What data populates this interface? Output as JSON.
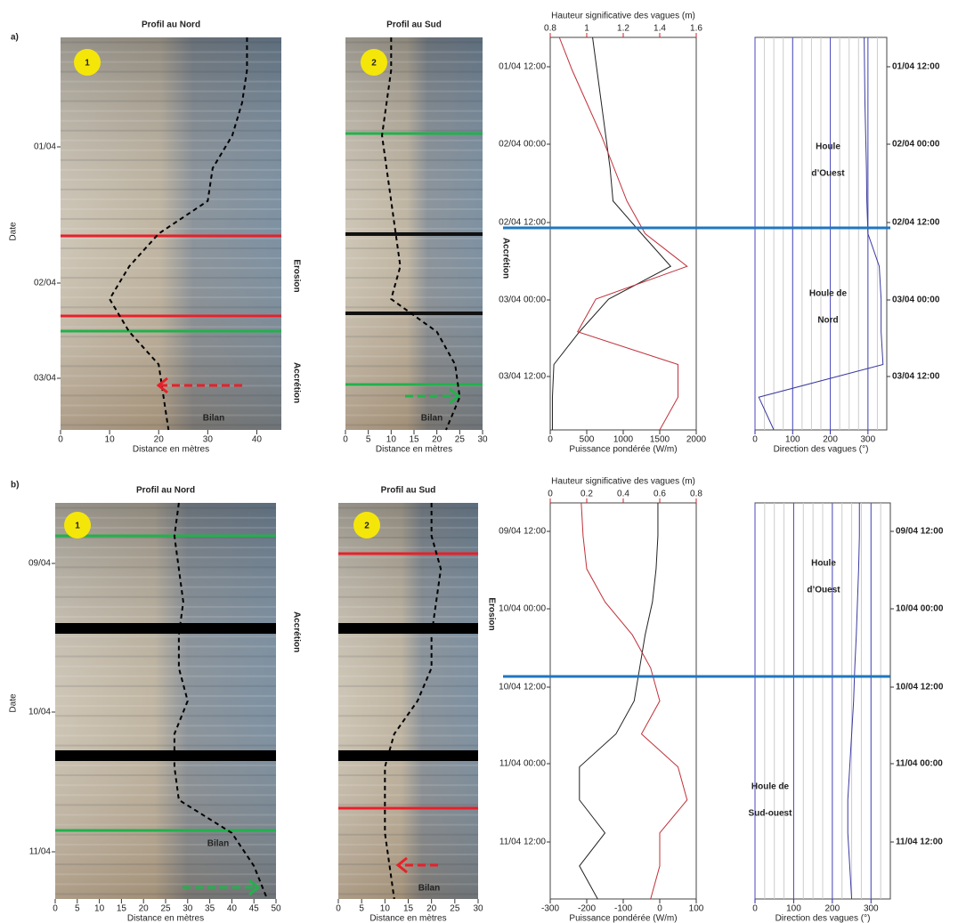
{
  "panel_labels": [
    "a)",
    "b)"
  ],
  "chart_data": [
    {
      "type": "timestack",
      "title": "Profil au Nord",
      "marker": "1",
      "ylabel": "Date",
      "xlabel": "Distance en mètres",
      "xlim": [
        0,
        45
      ],
      "xticks": [
        0,
        10,
        20,
        30,
        40
      ],
      "time_labels": [
        "01/04",
        "02/04",
        "03/04"
      ],
      "shoreline": [
        38,
        38,
        37,
        35,
        31,
        30,
        20,
        14,
        10,
        14,
        20,
        21,
        22
      ],
      "annotations": [
        {
          "text": "Erosion",
          "color": "#e8202a"
        },
        {
          "text": "Accrétion",
          "color": "#22b14c"
        },
        {
          "text": "Bilan",
          "color": "#e8202a"
        }
      ]
    },
    {
      "type": "timestack",
      "title": "Profil au Sud",
      "marker": "2",
      "xlabel": "Distance en mètres",
      "xlim": [
        0,
        30
      ],
      "xticks": [
        0,
        5,
        10,
        15,
        20,
        25,
        30
      ],
      "shoreline": [
        10,
        10,
        9,
        8,
        9,
        10,
        11,
        12,
        10,
        20,
        24,
        25,
        22
      ],
      "annotations": [
        {
          "text": "Accrétion",
          "color": "#22b14c"
        },
        {
          "text": "Bilan",
          "color": "#22b14c"
        }
      ]
    },
    {
      "type": "line",
      "x2label": "Hauteur significative des vagues (m)",
      "x2lim": [
        0.8,
        1.6
      ],
      "x2ticks": [
        0.8,
        1,
        1.2,
        1.4,
        1.6
      ],
      "x2color": "#d0202a",
      "xlabel": "Puissance pondérée (W/m)",
      "xlim": [
        0,
        2000
      ],
      "xticks": [
        0,
        500,
        1000,
        1500,
        2000
      ],
      "time_labels": [
        "01/04 12:00",
        "02/04 00:00",
        "02/04 12:00",
        "03/04 00:00",
        "03/04 12:00"
      ],
      "series": [
        {
          "color": "#222222",
          "values": [
            580,
            640,
            700,
            760,
            820,
            860,
            1250,
            1650,
            800,
            400,
            50,
            30,
            30
          ]
        },
        {
          "color": "#c0303a",
          "axis": "x2",
          "values": [
            0.85,
            0.92,
            1.0,
            1.08,
            1.15,
            1.22,
            1.32,
            1.55,
            1.05,
            0.95,
            1.5,
            1.5,
            1.4
          ]
        }
      ]
    },
    {
      "type": "line",
      "xlabel": "Direction des vagues (°)",
      "xlabel_color": "#2a2aa8",
      "xlim": [
        0,
        350
      ],
      "xticks": [
        0,
        100,
        200,
        300
      ],
      "grid": true,
      "time_labels": [
        "01/04 12:00",
        "02/04 00:00",
        "02/04 12:00",
        "03/04 00:00",
        "03/04 12:00"
      ],
      "series": [
        {
          "color": "#3a3aa0",
          "values": [
            290,
            291,
            292,
            294,
            296,
            297,
            300,
            330,
            335,
            335,
            340,
            10,
            50
          ]
        }
      ],
      "annotations": [
        {
          "lines": [
            "Houle",
            "d’Ouest"
          ],
          "color": "#1f77c0"
        },
        {
          "lines": [
            "Houle  de",
            "Nord"
          ],
          "color": "#1f77c0"
        }
      ]
    },
    {
      "type": "timestack",
      "title": "Profil au Nord",
      "marker": "1",
      "ylabel": "Date",
      "xlabel": "Distance en mètres",
      "xlim": [
        0,
        50
      ],
      "xticks": [
        0,
        5,
        10,
        15,
        20,
        25,
        30,
        35,
        40,
        45,
        50
      ],
      "time_labels": [
        "09/04",
        "10/04",
        "11/04"
      ],
      "shoreline": [
        28,
        27,
        28,
        29,
        28,
        28,
        30,
        27,
        27,
        28,
        40,
        45,
        48
      ],
      "annotations": [
        {
          "text": "Accrétion",
          "color": "#22b14c"
        },
        {
          "text": "Bilan",
          "color": "#22b14c"
        }
      ]
    },
    {
      "type": "timestack",
      "title": "Profil au Sud",
      "marker": "2",
      "xlabel": "Distance en mètres",
      "xlim": [
        0,
        30
      ],
      "xticks": [
        0,
        5,
        10,
        15,
        20,
        25,
        30
      ],
      "shoreline": [
        20,
        20,
        22,
        21,
        20,
        20,
        17,
        12,
        10,
        10,
        10,
        11,
        12
      ],
      "annotations": [
        {
          "text": "Erosion",
          "color": "#e8202a"
        },
        {
          "text": "Bilan",
          "color": "#e8202a"
        }
      ]
    },
    {
      "type": "line",
      "x2label": "Hauteur significative des vagues (m)",
      "x2lim": [
        0,
        0.8
      ],
      "x2ticks": [
        0,
        0.2,
        0.4,
        0.6,
        0.8
      ],
      "x2color": "#d0202a",
      "xlabel": "Puissance pondérée (W/m)",
      "xlim": [
        -300,
        100
      ],
      "xticks": [
        -300,
        -200,
        -100,
        0,
        100
      ],
      "time_labels": [
        "09/04 12:00",
        "10/04 00:00",
        "10/04 12:00",
        "11/04 00:00",
        "11/04 12:00"
      ],
      "series": [
        {
          "color": "#222222",
          "values": [
            -5,
            -5,
            -10,
            -20,
            -40,
            -55,
            -70,
            -120,
            -220,
            -220,
            -150,
            -220,
            -170
          ]
        },
        {
          "color": "#c0303a",
          "axis": "x2",
          "values": [
            0.17,
            0.18,
            0.2,
            0.3,
            0.45,
            0.55,
            0.6,
            0.5,
            0.7,
            0.75,
            0.6,
            0.6,
            0.55
          ]
        }
      ]
    },
    {
      "type": "line",
      "xlabel": "Direction des vagues (°)",
      "xlabel_color": "#2a2aa8",
      "xlim": [
        0,
        350
      ],
      "xticks": [
        0,
        100,
        200,
        300
      ],
      "grid": true,
      "time_labels": [
        "09/04 12:00",
        "10/04 00:00",
        "10/04 12:00",
        "11/04 00:00",
        "11/04 12:00"
      ],
      "series": [
        {
          "color": "#3a3aa0",
          "values": [
            270,
            270,
            268,
            265,
            262,
            258,
            255,
            250,
            245,
            240,
            240,
            245,
            250
          ]
        }
      ],
      "annotations": [
        {
          "lines": [
            "Houle",
            "d’Ouest"
          ],
          "color": "#1f77c0"
        },
        {
          "lines": [
            "Houle de",
            "Sud-ouest"
          ],
          "color": "#1f77c0"
        }
      ]
    }
  ]
}
